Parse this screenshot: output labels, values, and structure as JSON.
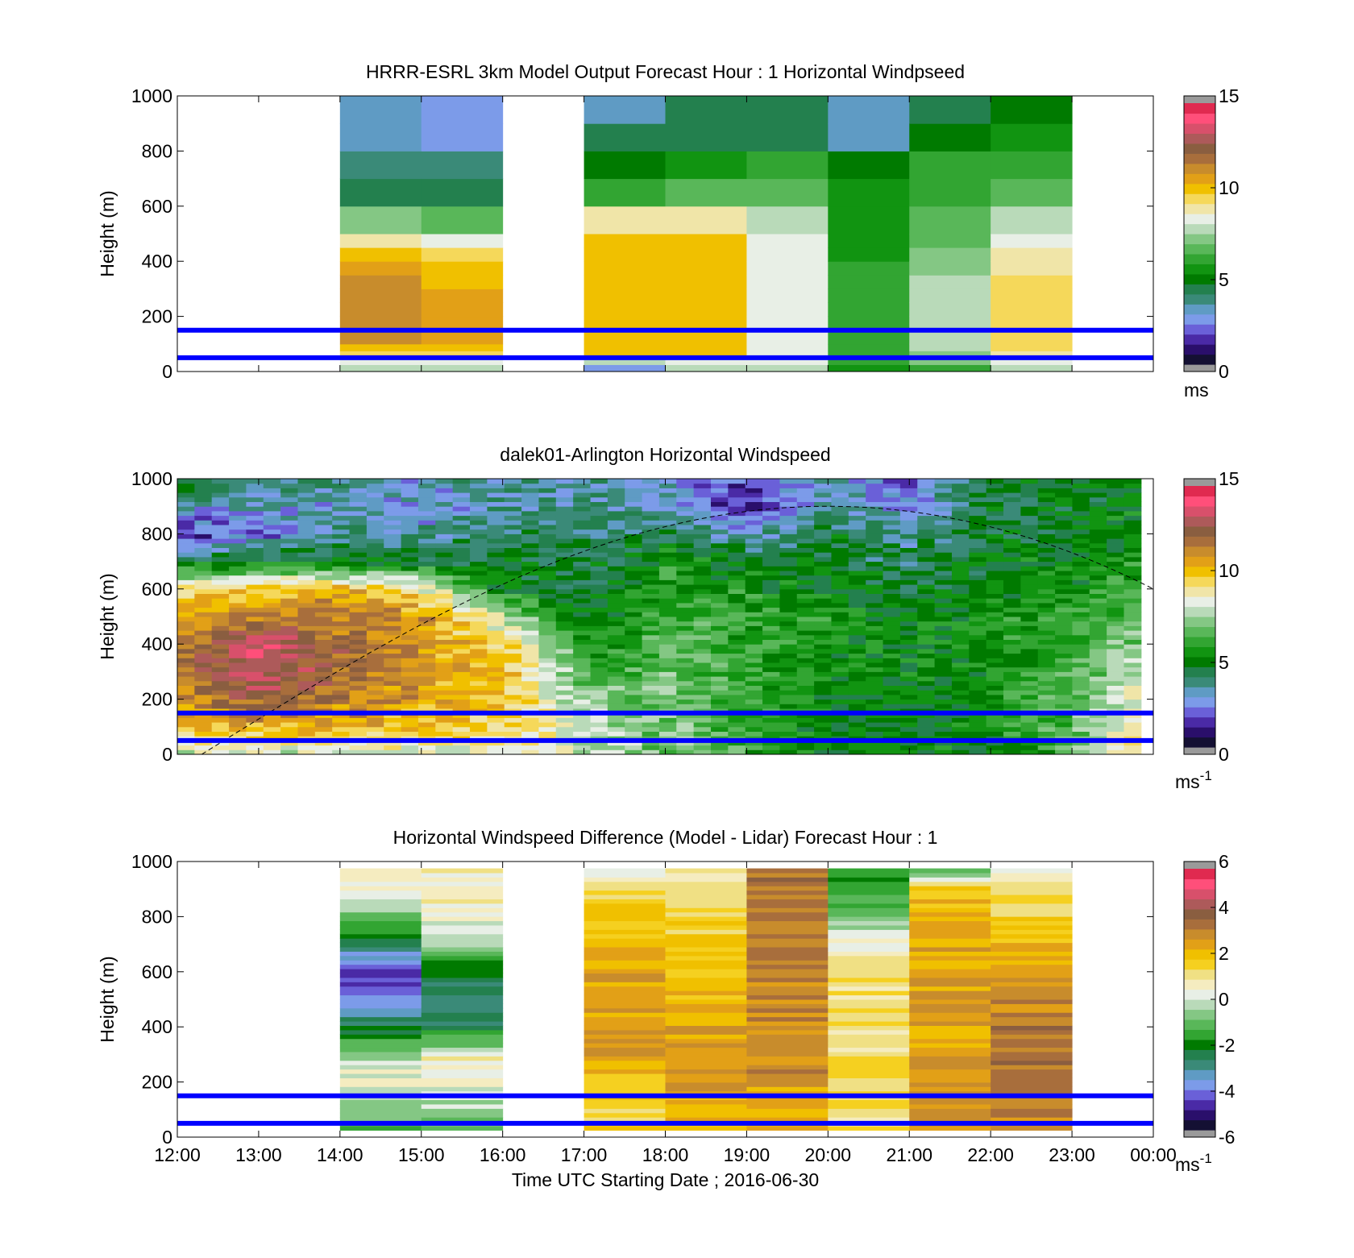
{
  "figure": {
    "xlabel": "Time UTC  Starting Date ; 2016-06-30",
    "x_tick_labels": [
      "12:00",
      "13:00",
      "14:00",
      "15:00",
      "16:00",
      "17:00",
      "18:00",
      "19:00",
      "20:00",
      "21:00",
      "22:00",
      "23:00",
      "00:00"
    ]
  },
  "colors": {
    "wind_colormap": [
      "#141033",
      "#2a0f6b",
      "#4a2aa6",
      "#6a60d8",
      "#7c9be9",
      "#5f9bc4",
      "#3a8a78",
      "#23804e",
      "#007a00",
      "#119411",
      "#32a532",
      "#59b759",
      "#84c784",
      "#b9dab9",
      "#e8efe6",
      "#f0e5a8",
      "#f5d85a",
      "#f0c000",
      "#e2a017",
      "#c88c2c",
      "#a86e3c",
      "#8a5e40",
      "#ad5a5a",
      "#d8506b",
      "#ff4f7a",
      "#e02a50"
    ],
    "diff_colormap": [
      "#141033",
      "#2a0f6b",
      "#4a2aa6",
      "#6a60d8",
      "#7c9be9",
      "#5f9bc4",
      "#3a8a78",
      "#23804e",
      "#007a00",
      "#32a532",
      "#59b759",
      "#84c784",
      "#b9dab9",
      "#e8efe6",
      "#f5ecc0",
      "#f0e084",
      "#f5d020",
      "#f0c000",
      "#e2a017",
      "#c88c2c",
      "#a86e3c",
      "#8a5e40",
      "#ad5a5a",
      "#d8506b",
      "#ff4f7a",
      "#e02a50"
    ],
    "layer_lines": "#0000ff"
  },
  "chart_data": [
    {
      "type": "heatmap",
      "title": "HRRR-ESRL 3km Model Output   Forecast Hour : 1 Horizontal Windpseed",
      "xlabel": "",
      "ylabel": "Height (m)",
      "x_range_hours": [
        12,
        24
      ],
      "ylim": [
        0,
        1000
      ],
      "y_ticks": [
        0,
        200,
        400,
        600,
        800,
        1000
      ],
      "colorbar": {
        "min": 0,
        "max": 15,
        "ticks": [
          0,
          5,
          10,
          15
        ],
        "label": "ms"
      },
      "reference_heights": [
        50,
        150
      ],
      "bins": [
        0,
        25,
        50,
        75,
        100,
        150,
        200,
        250,
        300,
        350,
        400,
        450,
        500,
        600,
        700,
        800,
        900,
        1000
      ],
      "columns": [
        {
          "start": 14,
          "values": [
            7.5,
            8.5,
            9.5,
            10,
            11,
            11.5,
            11.5,
            11.5,
            11,
            10.5,
            10,
            9,
            7.2,
            4.6,
            3.6,
            3.3,
            3.2
          ]
        },
        {
          "start": 15,
          "values": [
            7.5,
            8.5,
            9.5,
            10,
            10.5,
            10.5,
            10.5,
            10.5,
            10,
            10,
            9.5,
            8.5,
            6.5,
            4.2,
            3.5,
            2.8,
            2.6
          ]
        },
        {
          "start": 17,
          "values": [
            2.5,
            7.5,
            10,
            10,
            10,
            10,
            10,
            10,
            10,
            10,
            10,
            10,
            9,
            6.2,
            4.8,
            4.1,
            3.4
          ]
        },
        {
          "start": 18,
          "values": [
            7.8,
            8.5,
            10,
            10,
            10,
            10,
            10,
            10,
            10,
            10,
            10,
            10,
            9,
            6.8,
            5.5,
            4.6,
            4.3
          ]
        },
        {
          "start": 19,
          "values": [
            8,
            8.4,
            8.5,
            8.6,
            8.5,
            8.5,
            8.5,
            8.5,
            8.5,
            8.5,
            8.5,
            8.5,
            7.6,
            6.8,
            5.8,
            4.6,
            4.1
          ]
        },
        {
          "start": 20,
          "values": [
            5.2,
            6,
            6,
            6,
            6,
            6,
            6,
            6,
            5.8,
            5.8,
            5.6,
            5.6,
            5.5,
            5.3,
            4.8,
            3.4,
            3.2
          ]
        },
        {
          "start": 21,
          "values": [
            5.8,
            7,
            7.2,
            7.5,
            7.5,
            7.5,
            7.6,
            7.6,
            7.5,
            7.3,
            7.1,
            6.8,
            6.5,
            6.2,
            5.8,
            5,
            4.6
          ]
        },
        {
          "start": 22,
          "values": [
            8,
            8.5,
            9,
            9.5,
            9.5,
            9.5,
            9.5,
            9.5,
            9.3,
            9,
            8.8,
            8.5,
            7.8,
            6.8,
            6.2,
            5.5,
            5
          ]
        }
      ]
    },
    {
      "type": "heatmap",
      "title": "dalek01-Arlington  Horizontal Windspeed",
      "xlabel": "",
      "ylabel": "Height (m)",
      "x_range_hours": [
        12,
        24
      ],
      "data_x_range_hours": [
        12,
        23.85
      ],
      "ylim": [
        0,
        1000
      ],
      "y_ticks": [
        0,
        200,
        400,
        600,
        800,
        1000
      ],
      "colorbar": {
        "min": 0,
        "max": 15,
        "ticks": [
          0,
          5,
          10,
          15
        ],
        "label": "ms^-1"
      },
      "reference_heights": [
        50,
        150
      ],
      "boundary_layer_curve": {
        "style": "dashed",
        "peak_time_h": 20,
        "peak_height_m": 900,
        "start_time_h": 12.3,
        "end_time_h": 24,
        "end_height_m": 600
      },
      "profiles": {
        "times_h": [
          12.0,
          13.0,
          14.0,
          15.0,
          16.0,
          17.0,
          17.5,
          18.0,
          19.0,
          20.0,
          21.0,
          22.0,
          23.0,
          23.85
        ],
        "heights_m": [
          0,
          100,
          200,
          300,
          400,
          500,
          600,
          700,
          800,
          900,
          1000
        ],
        "speeds": [
          [
            8,
            10,
            11,
            11.5,
            11.5,
            10.5,
            9.5,
            4.5,
            1.5,
            3,
            5
          ],
          [
            8,
            10.5,
            12.5,
            13.5,
            13.5,
            11.5,
            10,
            5,
            2,
            3,
            4
          ],
          [
            8,
            10.5,
            11.5,
            12,
            12,
            11.5,
            10.5,
            5,
            3.5,
            3,
            4
          ],
          [
            8,
            10,
            10.5,
            11,
            11,
            11,
            9,
            4.5,
            3.5,
            2.5,
            3
          ],
          [
            9,
            9.5,
            10,
            10,
            9.5,
            8,
            5,
            4.5,
            4,
            3.5,
            3.5
          ],
          [
            8,
            8,
            7.5,
            6.5,
            5.8,
            5,
            4.6,
            4.5,
            3.8,
            3.5,
            3.5
          ],
          [
            7.5,
            7.2,
            6.8,
            6.2,
            5.8,
            5.2,
            4.8,
            4.6,
            4,
            3.5,
            3
          ],
          [
            7,
            7,
            7,
            7,
            6.8,
            6.5,
            5.8,
            5.5,
            4.5,
            3,
            3
          ],
          [
            6,
            6,
            6,
            6,
            6,
            5.8,
            5.5,
            5,
            3,
            1,
            1.5
          ],
          [
            5,
            5,
            5,
            5.5,
            5.5,
            5.5,
            5,
            4.8,
            4.5,
            3.5,
            3
          ],
          [
            5,
            4.8,
            4.8,
            5,
            5,
            5,
            4.5,
            4,
            3.5,
            2.5,
            2
          ],
          [
            5,
            5.5,
            5.5,
            5.5,
            5.5,
            5.5,
            5,
            5,
            4.5,
            4.5,
            4.5
          ],
          [
            6.5,
            6.5,
            6.5,
            6.5,
            6,
            6,
            5.5,
            5,
            4.8,
            4.8,
            4.8
          ],
          [
            10,
            9.5,
            8.5,
            7.8,
            7.2,
            6.5,
            6,
            5.5,
            5,
            5,
            5
          ]
        ]
      }
    },
    {
      "type": "heatmap",
      "title": "Horizontal Windspeed Difference (Model - Lidar) Forecast Hour : 1",
      "xlabel": "Time UTC  Starting Date ; 2016-06-30",
      "ylabel": "Height (m)",
      "x_range_hours": [
        12,
        24
      ],
      "ylim": [
        0,
        1000
      ],
      "y_ticks": [
        0,
        200,
        400,
        600,
        800,
        1000
      ],
      "colorbar": {
        "min": -6,
        "max": 6,
        "ticks": [
          -6,
          -4,
          -2,
          0,
          2,
          4,
          6
        ],
        "label": "ms^-1"
      },
      "reference_heights": [
        50,
        150
      ],
      "heights_m": [
        25,
        100,
        200,
        300,
        400,
        500,
        600,
        700,
        800,
        900,
        1000
      ],
      "columns": [
        {
          "start": 14,
          "diffs": [
            -1,
            -1,
            0.5,
            -0.5,
            -2.5,
            -4,
            -5,
            -2.5,
            -1,
            0.5,
            0.5
          ]
        },
        {
          "start": 15,
          "diffs": [
            -1,
            -0.5,
            0.5,
            0.5,
            -2.5,
            -3,
            -2.5,
            -0.5,
            0.5,
            1,
            0.5
          ]
        },
        {
          "start": 17,
          "diffs": [
            1.5,
            1.5,
            1.8,
            2.5,
            2.8,
            2.5,
            2.5,
            2.2,
            1.8,
            1.5,
            -0.5
          ]
        },
        {
          "start": 18,
          "diffs": [
            2,
            2.5,
            2.6,
            2.8,
            2.5,
            2.2,
            2,
            1.8,
            1.5,
            1.2,
            0.8
          ]
        },
        {
          "start": 19,
          "diffs": [
            2.5,
            2.5,
            2.8,
            3,
            3,
            3,
            3.2,
            3.4,
            3.2,
            3.5,
            3.8
          ]
        },
        {
          "start": 20,
          "diffs": [
            1.2,
            1.2,
            1.2,
            1.1,
            1,
            1.2,
            1.5,
            0.5,
            -1,
            -1.5,
            -2
          ]
        },
        {
          "start": 21,
          "diffs": [
            2.8,
            2.8,
            2.8,
            2.8,
            2.5,
            2.8,
            2.5,
            2.5,
            2,
            2,
            -2.5
          ]
        },
        {
          "start": 22,
          "diffs": [
            3,
            3.2,
            3.2,
            3.5,
            3.5,
            3,
            2.5,
            2,
            1.5,
            1,
            0.5
          ]
        }
      ]
    }
  ]
}
